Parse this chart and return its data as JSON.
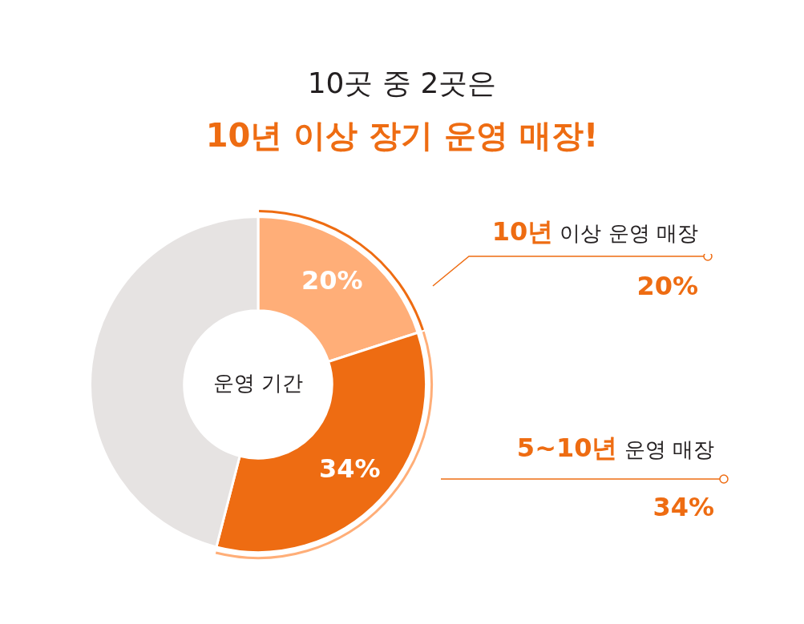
{
  "chart_data": {
    "type": "donut",
    "title": "10곳 중 2곳은",
    "subtitle": "10년 이상 장기 운영 매장!",
    "categories": [
      "10년 이상 운영 매장",
      "5~10년 운영 매장",
      null
    ],
    "values": [
      20,
      34,
      46
    ],
    "colors": [
      "#ffae78",
      "#ee6c12",
      "#e6e3e2"
    ],
    "value_labels": [
      "20%",
      "34%",
      null
    ],
    "annotations": [
      "운영 기간"
    ],
    "legend": false
  }
}
